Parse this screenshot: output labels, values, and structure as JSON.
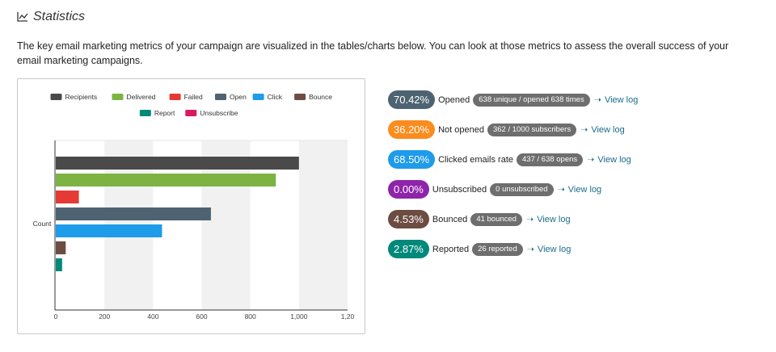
{
  "header": {
    "title": "Statistics",
    "icon": "line-chart-icon"
  },
  "description": "The key email marketing metrics of your campaign are visualized in the tables/charts below. You can look at those metrics to assess the overall success of your email marketing campaigns.",
  "chart_data": {
    "type": "bar",
    "orientation": "horizontal",
    "ylabel": "Count",
    "xlim": [
      0,
      1200
    ],
    "x_ticks": [
      "0",
      "200",
      "400",
      "600",
      "800",
      "1,000",
      "1,20"
    ],
    "grid": "alternating vertical bands",
    "legend": "top",
    "series": [
      {
        "name": "Recipients",
        "value": 1000,
        "color": "#4a4a4a"
      },
      {
        "name": "Delivered",
        "value": 905,
        "color": "#7cb342"
      },
      {
        "name": "Failed",
        "value": 95,
        "color": "#e53935"
      },
      {
        "name": "Open",
        "value": 638,
        "color": "#4d6372"
      },
      {
        "name": "Click",
        "value": 437,
        "color": "#1e9be9"
      },
      {
        "name": "Bounce",
        "value": 41,
        "color": "#6d4c41"
      },
      {
        "name": "Report",
        "value": 26,
        "color": "#00897b"
      },
      {
        "name": "Unsubscribe",
        "value": 0,
        "color": "#d81b60"
      }
    ]
  },
  "metrics": [
    {
      "name": "opened",
      "percent": "70.42%",
      "color": "#4d6372",
      "label": "Opened",
      "detail": "638 unique / opened 638 times",
      "arrow": "➝",
      "link": "View log"
    },
    {
      "name": "not-opened",
      "percent": "36.20%",
      "color": "#fb8c1e",
      "label": "Not opened",
      "detail": "362 / 1000 subscribers",
      "arrow": "➝",
      "link": "View log"
    },
    {
      "name": "clicked",
      "percent": "68.50%",
      "color": "#1e9be9",
      "label": "Clicked emails rate",
      "detail": "437 / 638 opens",
      "arrow": "➝",
      "link": "View log"
    },
    {
      "name": "unsubscribed",
      "percent": "0.00%",
      "color": "#8e24aa",
      "label": "Unsubscribed",
      "detail": "0 unsubscribed",
      "arrow": "➝",
      "link": "View log"
    },
    {
      "name": "bounced",
      "percent": "4.53%",
      "color": "#6d4c41",
      "label": "Bounced",
      "detail": "41 bounced",
      "arrow": "➝",
      "link": "View log"
    },
    {
      "name": "reported",
      "percent": "2.87%",
      "color": "#00897b",
      "label": "Reported",
      "detail": "26 reported",
      "arrow": "➝",
      "link": "View log"
    }
  ]
}
